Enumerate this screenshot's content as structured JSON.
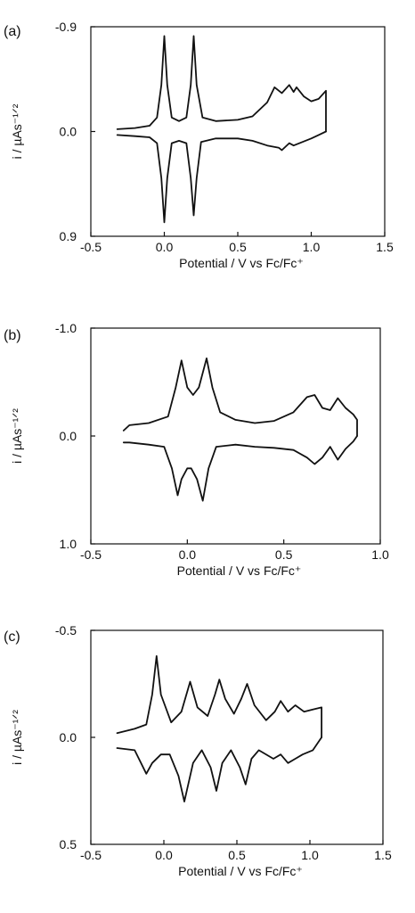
{
  "chart_data": [
    {
      "type": "line",
      "panel_label": "(a)",
      "xlabel": "Potential / V vs  Fc/Fc⁺",
      "ylabel": "i / µAs⁻¹ᐟ²",
      "xlim": [
        -0.5,
        1.5
      ],
      "ylim": [
        -0.9,
        0.9
      ],
      "y_inverted": true,
      "xticks": [
        "-0.5",
        "0.0",
        "0.5",
        "1.0",
        "1.5"
      ],
      "yticks": [
        "-0.9",
        "0.0",
        "0.9"
      ],
      "series": [
        {
          "x": [
            -0.32,
            -0.2,
            -0.1,
            -0.05,
            -0.02,
            0.0,
            0.02,
            0.05,
            0.1,
            0.15,
            0.18,
            0.2,
            0.22,
            0.26,
            0.35,
            0.5,
            0.6,
            0.7,
            0.75,
            0.8,
            0.85,
            0.88,
            0.9,
            0.95,
            1.0,
            1.05,
            1.1,
            1.1
          ],
          "y": [
            -0.02,
            -0.03,
            -0.05,
            -0.12,
            -0.4,
            -0.82,
            -0.4,
            -0.12,
            -0.09,
            -0.12,
            -0.4,
            -0.82,
            -0.4,
            -0.12,
            -0.09,
            -0.1,
            -0.13,
            -0.25,
            -0.38,
            -0.33,
            -0.4,
            -0.34,
            -0.38,
            -0.3,
            -0.26,
            -0.28,
            -0.35,
            0.0
          ]
        },
        {
          "x": [
            1.1,
            1.05,
            1.0,
            0.92,
            0.88,
            0.85,
            0.8,
            0.78,
            0.7,
            0.6,
            0.5,
            0.35,
            0.25,
            0.22,
            0.2,
            0.18,
            0.15,
            0.1,
            0.05,
            0.02,
            0.0,
            -0.02,
            -0.05,
            -0.1,
            -0.2,
            -0.32
          ],
          "y": [
            0.0,
            0.03,
            0.06,
            0.1,
            0.12,
            0.1,
            0.16,
            0.14,
            0.12,
            0.08,
            0.06,
            0.06,
            0.09,
            0.4,
            0.72,
            0.4,
            0.1,
            0.08,
            0.1,
            0.4,
            0.78,
            0.4,
            0.1,
            0.05,
            0.04,
            0.03
          ]
        }
      ]
    },
    {
      "type": "line",
      "panel_label": "(b)",
      "xlabel": "Potential / V vs  Fc/Fc⁺",
      "ylabel": "i / µAs⁻¹ᐟ²",
      "xlim": [
        -0.5,
        1.0
      ],
      "ylim": [
        -1.0,
        1.0
      ],
      "y_inverted": true,
      "xticks": [
        "-0.5",
        "0.0",
        "0.5",
        "1.0"
      ],
      "yticks": [
        "-1.0",
        "0.0",
        "1.0"
      ],
      "series": [
        {
          "x": [
            -0.33,
            -0.3,
            -0.2,
            -0.1,
            -0.06,
            -0.03,
            0.0,
            0.03,
            0.06,
            0.1,
            0.13,
            0.17,
            0.25,
            0.35,
            0.45,
            0.55,
            0.62,
            0.66,
            0.7,
            0.74,
            0.78,
            0.82,
            0.86,
            0.88,
            0.88
          ],
          "y": [
            -0.05,
            -0.1,
            -0.12,
            -0.18,
            -0.45,
            -0.7,
            -0.45,
            -0.38,
            -0.45,
            -0.72,
            -0.45,
            -0.22,
            -0.15,
            -0.12,
            -0.14,
            -0.22,
            -0.36,
            -0.38,
            -0.26,
            -0.24,
            -0.35,
            -0.26,
            -0.2,
            -0.15,
            0.0
          ]
        },
        {
          "x": [
            0.88,
            0.86,
            0.82,
            0.78,
            0.74,
            0.7,
            0.66,
            0.62,
            0.55,
            0.45,
            0.35,
            0.25,
            0.15,
            0.11,
            0.08,
            0.05,
            0.02,
            0.0,
            -0.03,
            -0.05,
            -0.08,
            -0.12,
            -0.2,
            -0.3,
            -0.33
          ],
          "y": [
            0.0,
            0.05,
            0.12,
            0.22,
            0.1,
            0.2,
            0.26,
            0.2,
            0.13,
            0.11,
            0.1,
            0.08,
            0.1,
            0.3,
            0.6,
            0.4,
            0.3,
            0.3,
            0.4,
            0.55,
            0.3,
            0.1,
            0.08,
            0.06,
            0.06
          ]
        }
      ]
    },
    {
      "type": "line",
      "panel_label": "(c)",
      "xlabel": "Potential / V vs  Fc/Fc⁺",
      "ylabel": "i / µAs⁻¹ᐟ²",
      "xlim": [
        -0.5,
        1.5
      ],
      "ylim": [
        -0.5,
        0.5
      ],
      "y_inverted": true,
      "xticks": [
        "-0.5",
        "0.0",
        "0.5",
        "1.0",
        "1.5"
      ],
      "yticks": [
        "-0.5",
        "0.0",
        "0.5"
      ],
      "series": [
        {
          "x": [
            -0.32,
            -0.2,
            -0.12,
            -0.08,
            -0.05,
            -0.02,
            0.05,
            0.12,
            0.18,
            0.23,
            0.3,
            0.35,
            0.38,
            0.42,
            0.48,
            0.53,
            0.57,
            0.62,
            0.7,
            0.76,
            0.8,
            0.85,
            0.9,
            0.96,
            1.02,
            1.08,
            1.08
          ],
          "y": [
            -0.02,
            -0.04,
            -0.06,
            -0.2,
            -0.38,
            -0.2,
            -0.07,
            -0.12,
            -0.26,
            -0.14,
            -0.1,
            -0.2,
            -0.27,
            -0.18,
            -0.11,
            -0.18,
            -0.25,
            -0.15,
            -0.08,
            -0.12,
            -0.17,
            -0.12,
            -0.15,
            -0.12,
            -0.13,
            -0.14,
            0.0
          ]
        },
        {
          "x": [
            1.08,
            1.02,
            0.95,
            0.9,
            0.85,
            0.8,
            0.75,
            0.65,
            0.6,
            0.56,
            0.52,
            0.46,
            0.4,
            0.36,
            0.32,
            0.26,
            0.2,
            0.14,
            0.1,
            0.04,
            -0.02,
            -0.08,
            -0.12,
            -0.2,
            -0.32
          ],
          "y": [
            0.0,
            0.06,
            0.08,
            0.1,
            0.12,
            0.08,
            0.1,
            0.06,
            0.1,
            0.22,
            0.14,
            0.06,
            0.12,
            0.25,
            0.14,
            0.06,
            0.12,
            0.3,
            0.18,
            0.08,
            0.08,
            0.12,
            0.17,
            0.06,
            0.05
          ]
        }
      ]
    }
  ]
}
